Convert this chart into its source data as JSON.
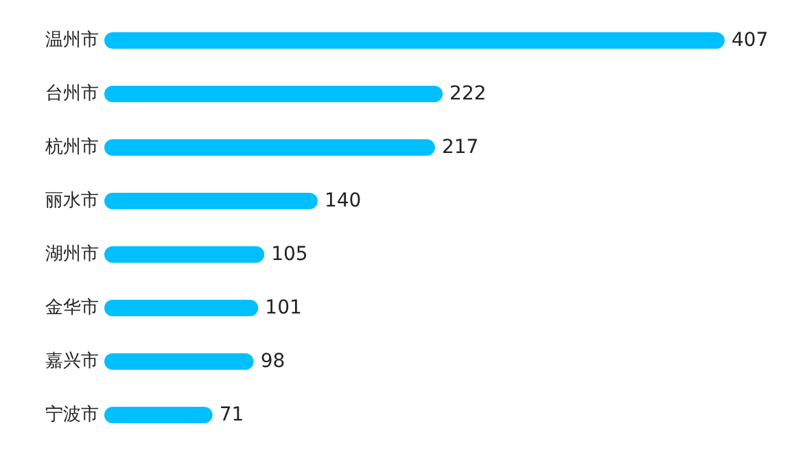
{
  "chart_data": {
    "type": "bar",
    "orientation": "horizontal",
    "categories": [
      "温州市",
      "台州市",
      "杭州市",
      "丽水市",
      "湖州市",
      "金华市",
      "嘉兴市",
      "宁波市"
    ],
    "values": [
      407,
      222,
      217,
      140,
      105,
      101,
      98,
      71
    ],
    "color": "#00bfff",
    "data_labels": true,
    "tick_labels": "y"
  }
}
